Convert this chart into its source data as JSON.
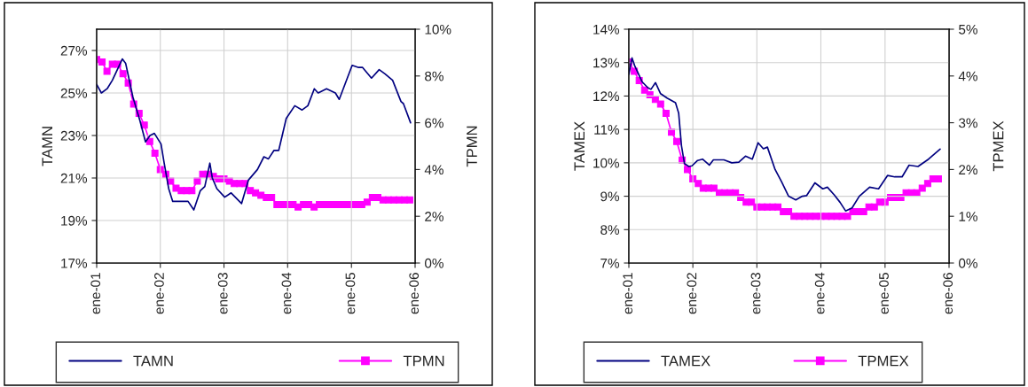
{
  "chart_data": [
    {
      "type": "line",
      "ylabel": "TAMN",
      "y2label": "TPMN",
      "grid": true,
      "legend": "bottom",
      "xlim": [
        "2001-01",
        "2006-01"
      ],
      "xticks": [
        {
          "value": "2001-01",
          "label": "ene-01"
        },
        {
          "value": "2002-01",
          "label": "ene-02"
        },
        {
          "value": "2003-01",
          "label": "ene-03"
        },
        {
          "value": "2004-01",
          "label": "ene-04"
        },
        {
          "value": "2005-01",
          "label": "ene-05"
        },
        {
          "value": "2006-01",
          "label": "ene-06"
        }
      ],
      "ylim": [
        17,
        28
      ],
      "yticks": [
        {
          "value": 17,
          "label": "17%"
        },
        {
          "value": 19,
          "label": "19%"
        },
        {
          "value": 21,
          "label": "21%"
        },
        {
          "value": 23,
          "label": "23%"
        },
        {
          "value": 25,
          "label": "25%"
        },
        {
          "value": 27,
          "label": "27%"
        }
      ],
      "y2lim": [
        0,
        10
      ],
      "y2ticks": [
        {
          "value": 0,
          "label": "0%"
        },
        {
          "value": 2,
          "label": "2%"
        },
        {
          "value": 4,
          "label": "4%"
        },
        {
          "value": 6,
          "label": "6%"
        },
        {
          "value": 8,
          "label": "8%"
        },
        {
          "value": 10,
          "label": "10%"
        }
      ],
      "series": [
        {
          "name": "TAMN",
          "color": "#000080",
          "marker": "none",
          "x": [
            "2001-01-01",
            "2001-01-28",
            "2001-03-02",
            "2001-04-01",
            "2001-05-28",
            "2001-06-16",
            "2001-07-28",
            "2001-09-06",
            "2001-10-08",
            "2001-11-03",
            "2001-11-28",
            "2002-01-05",
            "2002-01-23",
            "2002-02-18",
            "2002-03-13",
            "2002-04-15",
            "2002-06-09",
            "2002-07-12",
            "2002-08-18",
            "2002-09-13",
            "2002-10-12",
            "2002-10-26",
            "2002-11-21",
            "2003-01-05",
            "2003-02-11",
            "2003-04-12",
            "2003-05-21",
            "2003-07-12",
            "2003-08-18",
            "2003-09-13",
            "2003-10-15",
            "2003-11-11",
            "2003-12-24",
            "2004-02-11",
            "2004-03-24",
            "2004-04-26",
            "2004-06-02",
            "2004-06-24",
            "2004-08-11",
            "2004-10-01",
            "2004-10-23",
            "2005-01-05",
            "2005-02-11",
            "2005-03-06",
            "2005-04-26",
            "2005-06-09",
            "2005-07-12",
            "2005-08-25",
            "2005-10-12",
            "2005-10-26",
            "2005-12-06"
          ],
          "values": [
            25.4,
            25.0,
            25.2,
            25.6,
            26.6,
            26.4,
            24.8,
            23.7,
            22.7,
            23.0,
            23.1,
            22.6,
            21.7,
            20.5,
            19.9,
            19.9,
            19.9,
            19.5,
            20.4,
            20.6,
            21.7,
            21.0,
            20.5,
            20.1,
            20.3,
            19.8,
            20.9,
            21.4,
            22.0,
            21.9,
            22.3,
            22.3,
            23.8,
            24.4,
            24.2,
            24.4,
            25.2,
            25.0,
            25.2,
            25.0,
            24.7,
            26.3,
            26.2,
            26.2,
            25.7,
            26.1,
            25.9,
            25.6,
            24.6,
            24.5,
            23.6
          ]
        },
        {
          "name": "TPMN",
          "color": "#ff00ff",
          "marker": "square",
          "axis": "y2",
          "x": [
            "2001-01",
            "2001-02",
            "2001-03",
            "2001-04",
            "2001-05",
            "2001-06",
            "2001-07",
            "2001-08",
            "2001-09",
            "2001-10",
            "2001-11",
            "2001-12",
            "2002-01",
            "2002-02",
            "2002-03",
            "2002-04",
            "2002-05",
            "2002-06",
            "2002-07",
            "2002-08",
            "2002-09",
            "2002-10",
            "2002-11",
            "2002-12",
            "2003-01",
            "2003-02",
            "2003-03",
            "2003-04",
            "2003-05",
            "2003-06",
            "2003-07",
            "2003-08",
            "2003-09",
            "2003-10",
            "2003-11",
            "2003-12",
            "2004-01",
            "2004-02",
            "2004-03",
            "2004-04",
            "2004-05",
            "2004-06",
            "2004-07",
            "2004-08",
            "2004-09",
            "2004-10",
            "2004-11",
            "2004-12",
            "2005-01",
            "2005-02",
            "2005-03",
            "2005-04",
            "2005-05",
            "2005-06",
            "2005-07",
            "2005-08",
            "2005-09",
            "2005-10",
            "2005-11",
            "2005-12"
          ],
          "values": [
            8.7,
            8.6,
            8.2,
            8.5,
            8.5,
            8.1,
            7.7,
            6.8,
            6.4,
            5.9,
            5.2,
            4.7,
            4.0,
            3.8,
            3.5,
            3.2,
            3.1,
            3.1,
            3.1,
            3.5,
            3.8,
            3.8,
            3.7,
            3.6,
            3.6,
            3.5,
            3.4,
            3.4,
            3.4,
            3.1,
            3.0,
            2.9,
            2.8,
            2.8,
            2.5,
            2.5,
            2.5,
            2.5,
            2.4,
            2.5,
            2.5,
            2.4,
            2.5,
            2.5,
            2.5,
            2.5,
            2.5,
            2.5,
            2.5,
            2.5,
            2.5,
            2.6,
            2.8,
            2.8,
            2.7,
            2.7,
            2.7,
            2.7,
            2.7,
            2.7
          ]
        }
      ]
    },
    {
      "type": "line",
      "ylabel": "TAMEX",
      "y2label": "TPMEX",
      "grid": true,
      "legend": "bottom",
      "xlim": [
        "2001-01",
        "2006-01"
      ],
      "xticks": [
        {
          "value": "2001-01",
          "label": "ene-01"
        },
        {
          "value": "2002-01",
          "label": "ene-02"
        },
        {
          "value": "2003-01",
          "label": "ene-03"
        },
        {
          "value": "2004-01",
          "label": "ene-04"
        },
        {
          "value": "2005-01",
          "label": "ene-05"
        },
        {
          "value": "2006-01",
          "label": "ene-06"
        }
      ],
      "ylim": [
        7,
        14
      ],
      "yticks": [
        {
          "value": 7,
          "label": "7%"
        },
        {
          "value": 8,
          "label": "8%"
        },
        {
          "value": 9,
          "label": "9%"
        },
        {
          "value": 10,
          "label": "10%"
        },
        {
          "value": 11,
          "label": "11%"
        },
        {
          "value": 12,
          "label": "12%"
        },
        {
          "value": 13,
          "label": "13%"
        },
        {
          "value": 14,
          "label": "14%"
        }
      ],
      "y2lim": [
        0,
        5
      ],
      "y2ticks": [
        {
          "value": 0,
          "label": "0%"
        },
        {
          "value": 1,
          "label": "1%"
        },
        {
          "value": 2,
          "label": "2%"
        },
        {
          "value": 3,
          "label": "3%"
        },
        {
          "value": 4,
          "label": "4%"
        },
        {
          "value": 5,
          "label": "5%"
        }
      ],
      "series": [
        {
          "name": "TAMEX",
          "color": "#000080",
          "marker": "none",
          "x": [
            "2001-01-01",
            "2001-01-19",
            "2001-02-03",
            "2001-03-17",
            "2001-04-19",
            "2001-05-07",
            "2001-06-02",
            "2001-07-01",
            "2001-08-07",
            "2001-09-24",
            "2001-10-12",
            "2001-10-28",
            "2001-11-14",
            "2001-12-09",
            "2001-12-27",
            "2002-01-28",
            "2002-02-25",
            "2002-04-05",
            "2002-04-28",
            "2002-06-27",
            "2002-08-11",
            "2002-09-20",
            "2002-10-28",
            "2002-12-06",
            "2003-01-08",
            "2003-02-07",
            "2003-03-02",
            "2003-04-15",
            "2003-05-21",
            "2003-07-01",
            "2003-08-11",
            "2003-09-17",
            "2003-10-12",
            "2003-11-28",
            "2004-01-12",
            "2004-02-07",
            "2004-03-17",
            "2004-04-19",
            "2004-05-21",
            "2004-06-27",
            "2004-08-07",
            "2004-10-05",
            "2004-11-25",
            "2005-01-15",
            "2005-02-25",
            "2005-04-08",
            "2005-05-18",
            "2005-07-08",
            "2005-09-06",
            "2005-11-11"
          ],
          "values": [
            12.65,
            13.14,
            12.91,
            12.43,
            12.25,
            12.2,
            12.4,
            12.07,
            11.94,
            11.8,
            11.49,
            10.51,
            9.98,
            9.89,
            9.91,
            10.07,
            10.11,
            9.93,
            10.09,
            10.09,
            10.0,
            10.02,
            10.2,
            10.11,
            10.6,
            10.42,
            10.47,
            9.8,
            9.44,
            9.0,
            8.89,
            9.0,
            9.02,
            9.4,
            9.22,
            9.27,
            9.04,
            8.82,
            8.56,
            8.65,
            9.0,
            9.27,
            9.22,
            9.62,
            9.58,
            9.58,
            9.93,
            9.89,
            10.11,
            10.41
          ]
        },
        {
          "name": "TPMEX",
          "color": "#ff00ff",
          "marker": "square",
          "axis": "y2",
          "x": [
            "2001-01",
            "2001-02",
            "2001-03",
            "2001-04",
            "2001-05",
            "2001-06",
            "2001-07",
            "2001-08",
            "2001-09",
            "2001-10",
            "2001-11",
            "2001-12",
            "2002-01",
            "2002-02",
            "2002-03",
            "2002-04",
            "2002-05",
            "2002-06",
            "2002-07",
            "2002-08",
            "2002-09",
            "2002-10",
            "2002-11",
            "2002-12",
            "2003-01",
            "2003-02",
            "2003-03",
            "2003-04",
            "2003-05",
            "2003-06",
            "2003-07",
            "2003-08",
            "2003-09",
            "2003-10",
            "2003-11",
            "2003-12",
            "2004-01",
            "2004-02",
            "2004-03",
            "2004-04",
            "2004-05",
            "2004-06",
            "2004-07",
            "2004-08",
            "2004-09",
            "2004-10",
            "2004-11",
            "2004-12",
            "2005-01",
            "2005-02",
            "2005-03",
            "2005-04",
            "2005-05",
            "2005-06",
            "2005-07",
            "2005-08",
            "2005-09",
            "2005-10",
            "2005-11"
          ],
          "values": [
            4.3,
            4.1,
            3.9,
            3.7,
            3.6,
            3.5,
            3.4,
            3.2,
            2.8,
            2.6,
            2.2,
            2.0,
            1.8,
            1.7,
            1.6,
            1.6,
            1.6,
            1.5,
            1.5,
            1.5,
            1.5,
            1.4,
            1.3,
            1.3,
            1.2,
            1.2,
            1.2,
            1.2,
            1.2,
            1.1,
            1.1,
            1.0,
            1.0,
            1.0,
            1.0,
            1.0,
            1.0,
            1.0,
            1.0,
            1.0,
            1.0,
            1.0,
            1.1,
            1.1,
            1.1,
            1.2,
            1.2,
            1.3,
            1.3,
            1.4,
            1.4,
            1.4,
            1.5,
            1.5,
            1.5,
            1.6,
            1.7,
            1.8,
            1.8
          ]
        }
      ]
    }
  ]
}
